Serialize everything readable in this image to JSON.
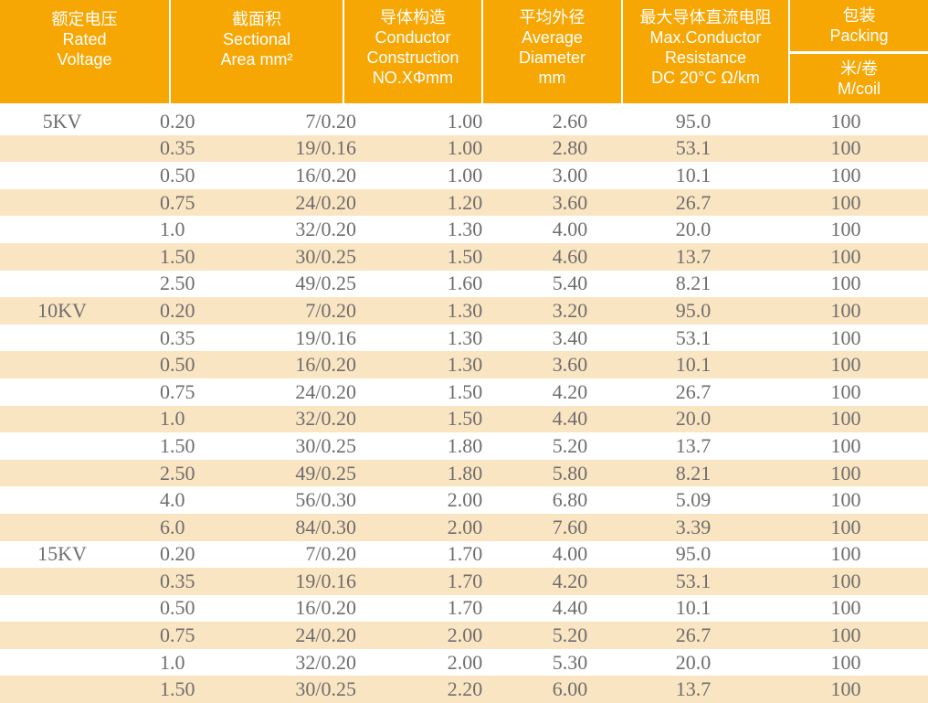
{
  "colors": {
    "header_bg": "#f6a704",
    "header_text": "#ffffff",
    "row_bg": "#ffffff",
    "row_alt_bg": "#fae5c3",
    "data_text": "#6f6d6d"
  },
  "header": {
    "rated_voltage": [
      "额定电压",
      "Rated",
      "Voltage"
    ],
    "sectional_area": [
      "截面积",
      "Sectional",
      "Area mm²"
    ],
    "conductor_construction": [
      "导体构造",
      "Conductor",
      "Construction",
      "NO.XΦmm"
    ],
    "average_diameter": [
      "平均外径",
      "Average",
      "Diameter",
      "mm"
    ],
    "max_resistance": [
      "最大导体直流电阻",
      "Max.Conductor",
      "Resistance",
      "DC 20°C Ω/km"
    ],
    "packing": [
      "包装",
      "Packing"
    ],
    "packing_unit": [
      "米/卷",
      "M/coil"
    ]
  },
  "table": {
    "rows": [
      [
        "5KV",
        "0.20",
        "7/0.20",
        "1.00",
        "2.60",
        "95.0",
        "100"
      ],
      [
        "",
        "0.35",
        "19/0.16",
        "1.00",
        "2.80",
        "53.1",
        "100"
      ],
      [
        "",
        "0.50",
        "16/0.20",
        "1.00",
        "3.00",
        "10.1",
        "100"
      ],
      [
        "",
        "0.75",
        "24/0.20",
        "1.20",
        "3.60",
        "26.7",
        "100"
      ],
      [
        "",
        "1.0",
        "32/0.20",
        "1.30",
        "4.00",
        "20.0",
        "100"
      ],
      [
        "",
        "1.50",
        "30/0.25",
        "1.50",
        "4.60",
        "13.7",
        "100"
      ],
      [
        "",
        "2.50",
        "49/0.25",
        "1.60",
        "5.40",
        "8.21",
        "100"
      ],
      [
        "10KV",
        "0.20",
        "7/0.20",
        "1.30",
        "3.20",
        "95.0",
        "100"
      ],
      [
        "",
        "0.35",
        "19/0.16",
        "1.30",
        "3.40",
        "53.1",
        "100"
      ],
      [
        "",
        "0.50",
        "16/0.20",
        "1.30",
        "3.60",
        "10.1",
        "100"
      ],
      [
        "",
        "0.75",
        "24/0.20",
        "1.50",
        "4.20",
        "26.7",
        "100"
      ],
      [
        "",
        "1.0",
        "32/0.20",
        "1.50",
        "4.40",
        "20.0",
        "100"
      ],
      [
        "",
        "1.50",
        "30/0.25",
        "1.80",
        "5.20",
        "13.7",
        "100"
      ],
      [
        "",
        "2.50",
        "49/0.25",
        "1.80",
        "5.80",
        "8.21",
        "100"
      ],
      [
        "",
        "4.0",
        "56/0.30",
        "2.00",
        "6.80",
        "5.09",
        "100"
      ],
      [
        "",
        "6.0",
        "84/0.30",
        "2.00",
        "7.60",
        "3.39",
        "100"
      ],
      [
        "15KV",
        "0.20",
        "7/0.20",
        "1.70",
        "4.00",
        "95.0",
        "100"
      ],
      [
        "",
        "0.35",
        "19/0.16",
        "1.70",
        "4.20",
        "53.1",
        "100"
      ],
      [
        "",
        "0.50",
        "16/0.20",
        "1.70",
        "4.40",
        "10.1",
        "100"
      ],
      [
        "",
        "0.75",
        "24/0.20",
        "2.00",
        "5.20",
        "26.7",
        "100"
      ],
      [
        "",
        "1.0",
        "32/0.20",
        "2.00",
        "5.30",
        "20.0",
        "100"
      ],
      [
        "",
        "1.50",
        "30/0.25",
        "2.20",
        "6.00",
        "13.7",
        "100"
      ]
    ]
  }
}
